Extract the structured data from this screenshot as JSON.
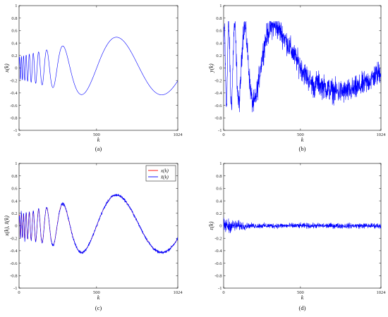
{
  "panels": [
    {
      "id": "a",
      "caption": "(a)",
      "chart_data": {
        "type": "line",
        "title": "",
        "xlabel": "k",
        "ylabel": "x(k)",
        "xlim": [
          0,
          1024
        ],
        "ylim": [
          -1,
          1
        ],
        "xticks": [
          "0",
          "500",
          "1024"
        ],
        "yticks": [
          "-1",
          "-0.8",
          "-0.6",
          "-0.4",
          "-0.2",
          "0",
          "0.2",
          "0.4",
          "0.6",
          "0.8",
          "1"
        ],
        "grid": false,
        "series": [
          {
            "color": "#0000ff",
            "generator": "chirp",
            "x_range": [
              0,
              1024
            ],
            "peaks": [
              {
                "x": 105,
                "y": 0.31
              },
              {
                "x": 152,
                "y": 0.36
              },
              {
                "x": 210,
                "y": 0.41
              },
              {
                "x": 287,
                "y": 0.45
              },
              {
                "x": 415,
                "y": 0.49
              },
              {
                "x": 785,
                "y": 0.41
              }
            ],
            "troughs": [
              {
                "x": 180,
                "y": -0.39
              },
              {
                "x": 240,
                "y": -0.43
              },
              {
                "x": 337,
                "y": -0.47
              },
              {
                "x": 563,
                "y": -0.5
              }
            ],
            "end_value": -0.02
          }
        ]
      }
    },
    {
      "id": "b",
      "caption": "(b)",
      "chart_data": {
        "type": "line",
        "title": "",
        "xlabel": "k",
        "ylabel": "y(k)",
        "xlim": [
          0,
          1024
        ],
        "ylim": [
          -1,
          1
        ],
        "xticks": [
          "0",
          "500",
          "1024"
        ],
        "yticks": [
          "-1",
          "-0.8",
          "-0.6",
          "-0.4",
          "-0.2",
          "0",
          "0.2",
          "0.4",
          "0.6",
          "0.8",
          "1"
        ],
        "grid": false,
        "series": [
          {
            "color": "#0000ff",
            "generator": "noisy-chirp",
            "x_range": [
              0,
              1024
            ],
            "noise_amplitude": 0.3,
            "max": {
              "x": 415,
              "y": 0.73
            },
            "min": {
              "x": 560,
              "y": -0.83
            }
          }
        ]
      }
    },
    {
      "id": "c",
      "caption": "(c)",
      "chart_data": {
        "type": "line",
        "title": "",
        "xlabel": "k",
        "ylabel": "x(k), x̂(k)",
        "xlim": [
          0,
          1024
        ],
        "ylim": [
          -1,
          1
        ],
        "xticks": [
          "0",
          "500",
          "1024"
        ],
        "yticks": [
          "-1",
          "-0.8",
          "-0.6",
          "-0.4",
          "-0.2",
          "0",
          "0.2",
          "0.4",
          "0.6",
          "0.8",
          "1"
        ],
        "grid": false,
        "legend": {
          "placement": "top-right",
          "entries": [
            {
              "label": "x(k)",
              "color": "#ff0000"
            },
            {
              "label": "x̂(k)",
              "color": "#0000ff"
            }
          ]
        },
        "series": [
          {
            "name": "x(k)",
            "color": "#ff0000",
            "generator": "chirp",
            "x_range": [
              0,
              1024
            ]
          },
          {
            "name": "x̂(k)",
            "color": "#0000ff",
            "generator": "chirp-estimate",
            "x_range": [
              0,
              1024
            ],
            "noise_amplitude": 0.04
          }
        ]
      }
    },
    {
      "id": "d",
      "caption": "(d)",
      "chart_data": {
        "type": "line",
        "title": "",
        "xlabel": "k",
        "ylabel": "ε(k)",
        "xlim": [
          0,
          1024
        ],
        "ylim": [
          -1,
          1
        ],
        "xticks": [
          "0",
          "500",
          "1024"
        ],
        "yticks": [
          "-1",
          "-0.8",
          "-0.6",
          "-0.4",
          "-0.2",
          "0",
          "0.2",
          "0.4",
          "0.6",
          "0.8",
          "1"
        ],
        "grid": false,
        "series": [
          {
            "color": "#0000ff",
            "generator": "error",
            "x_range": [
              0,
              1024
            ],
            "max": {
              "x": 25,
              "y": 0.24
            },
            "min": {
              "x": 90,
              "y": -0.31
            },
            "tail_amplitude": 0.05
          }
        ]
      }
    }
  ]
}
